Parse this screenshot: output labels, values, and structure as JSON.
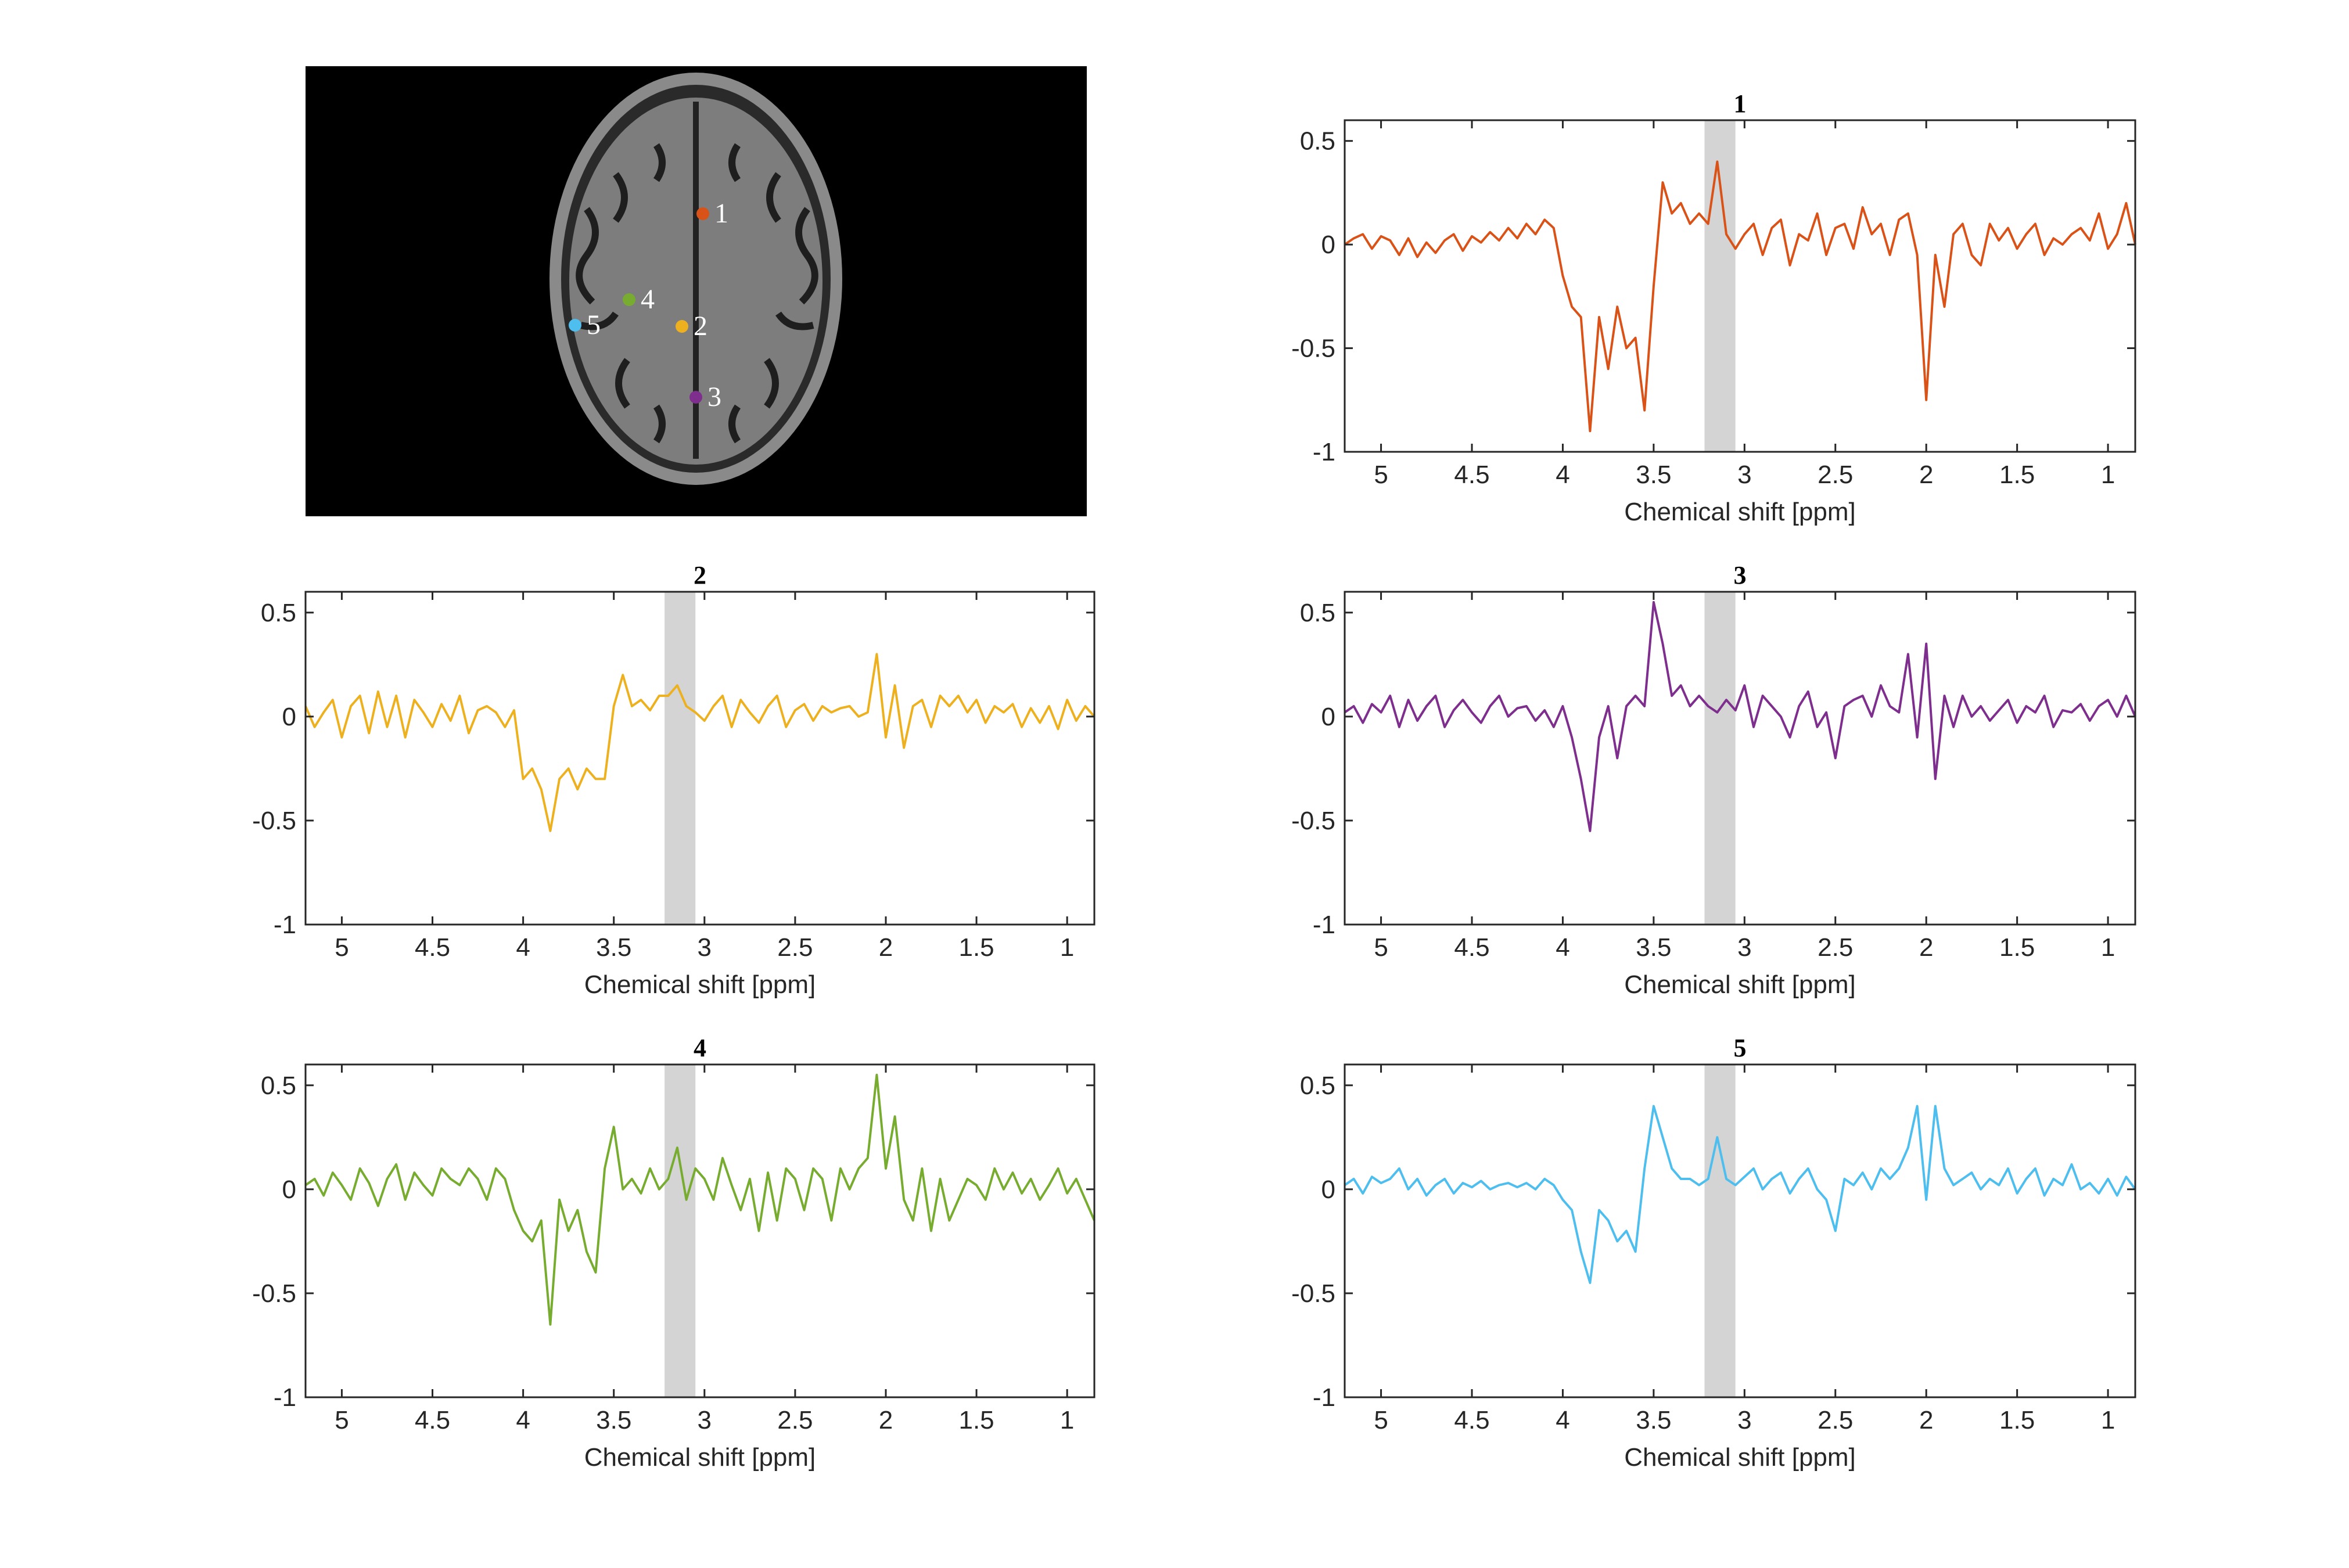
{
  "image": {
    "markers": [
      {
        "label": "1",
        "color": "#d95319"
      },
      {
        "label": "2",
        "color": "#edb120"
      },
      {
        "label": "3",
        "color": "#7e2f8e"
      },
      {
        "label": "4",
        "color": "#77ac30"
      },
      {
        "label": "5",
        "color": "#4dbeee"
      }
    ]
  },
  "chart_data": [
    {
      "type": "line",
      "title": "1",
      "xlabel": "Chemical shift [ppm]",
      "x": [
        5.2,
        5.15,
        5.1,
        5.05,
        5,
        4.95,
        4.9,
        4.85,
        4.8,
        4.75,
        4.7,
        4.65,
        4.6,
        4.55,
        4.5,
        4.45,
        4.4,
        4.35,
        4.3,
        4.25,
        4.2,
        4.15,
        4.1,
        4.05,
        4,
        3.95,
        3.9,
        3.85,
        3.8,
        3.75,
        3.7,
        3.65,
        3.6,
        3.55,
        3.5,
        3.45,
        3.4,
        3.35,
        3.3,
        3.25,
        3.2,
        3.15,
        3.1,
        3.05,
        3,
        2.95,
        2.9,
        2.85,
        2.8,
        2.75,
        2.7,
        2.65,
        2.6,
        2.55,
        2.5,
        2.45,
        2.4,
        2.35,
        2.3,
        2.25,
        2.2,
        2.15,
        2.1,
        2.05,
        2,
        1.95,
        1.9,
        1.85,
        1.8,
        1.75,
        1.7,
        1.65,
        1.6,
        1.55,
        1.5,
        1.45,
        1.4,
        1.35,
        1.3,
        1.25,
        1.2,
        1.15,
        1.1,
        1.05,
        1,
        0.95,
        0.9,
        0.85
      ],
      "series": [
        {
          "color": "#d95319",
          "values": [
            0,
            0.03,
            0.05,
            -0.02,
            0.04,
            0.02,
            -0.05,
            0.03,
            -0.06,
            0.01,
            -0.04,
            0.02,
            0.05,
            -0.03,
            0.04,
            0.01,
            0.06,
            0.02,
            0.08,
            0.03,
            0.1,
            0.05,
            0.12,
            0.08,
            -0.15,
            -0.3,
            -0.35,
            -0.9,
            -0.35,
            -0.6,
            -0.3,
            -0.5,
            -0.45,
            -0.8,
            -0.2,
            0.3,
            0.15,
            0.2,
            0.1,
            0.15,
            0.1,
            0.4,
            0.05,
            -0.02,
            0.05,
            0.1,
            -0.05,
            0.08,
            0.12,
            -0.1,
            0.05,
            0.02,
            0.15,
            -0.05,
            0.08,
            0.1,
            -0.02,
            0.18,
            0.05,
            0.1,
            -0.05,
            0.12,
            0.15,
            -0.05,
            -0.75,
            -0.05,
            -0.3,
            0.05,
            0.1,
            -0.05,
            -0.1,
            0.1,
            0.02,
            0.08,
            -0.02,
            0.05,
            0.1,
            -0.05,
            0.03,
            0,
            0.05,
            0.08,
            0.02,
            0.15,
            -0.02,
            0.05,
            0.2,
            0
          ]
        }
      ],
      "shaded_region": [
        3.22,
        3.05
      ],
      "xlim": [
        5.2,
        0.85
      ],
      "xticks": [
        5,
        4.5,
        4,
        3.5,
        3,
        2.5,
        2,
        1.5,
        1
      ],
      "ylim": [
        -1,
        0.6
      ],
      "yticks": [
        -1,
        -0.5,
        0,
        0.5
      ]
    },
    {
      "type": "line",
      "title": "2",
      "xlabel": "Chemical shift [ppm]",
      "x": [
        5.2,
        5.15,
        5.1,
        5.05,
        5,
        4.95,
        4.9,
        4.85,
        4.8,
        4.75,
        4.7,
        4.65,
        4.6,
        4.55,
        4.5,
        4.45,
        4.4,
        4.35,
        4.3,
        4.25,
        4.2,
        4.15,
        4.1,
        4.05,
        4,
        3.95,
        3.9,
        3.85,
        3.8,
        3.75,
        3.7,
        3.65,
        3.6,
        3.55,
        3.5,
        3.45,
        3.4,
        3.35,
        3.3,
        3.25,
        3.2,
        3.15,
        3.1,
        3.05,
        3,
        2.95,
        2.9,
        2.85,
        2.8,
        2.75,
        2.7,
        2.65,
        2.6,
        2.55,
        2.5,
        2.45,
        2.4,
        2.35,
        2.3,
        2.25,
        2.2,
        2.15,
        2.1,
        2.05,
        2,
        1.95,
        1.9,
        1.85,
        1.8,
        1.75,
        1.7,
        1.65,
        1.6,
        1.55,
        1.5,
        1.45,
        1.4,
        1.35,
        1.3,
        1.25,
        1.2,
        1.15,
        1.1,
        1.05,
        1,
        0.95,
        0.9,
        0.85
      ],
      "series": [
        {
          "color": "#edb120",
          "values": [
            0.05,
            -0.05,
            0.02,
            0.08,
            -0.1,
            0.05,
            0.1,
            -0.08,
            0.12,
            -0.05,
            0.1,
            -0.1,
            0.08,
            0.02,
            -0.05,
            0.06,
            -0.02,
            0.1,
            -0.08,
            0.03,
            0.05,
            0.02,
            -0.05,
            0.03,
            -0.3,
            -0.25,
            -0.35,
            -0.55,
            -0.3,
            -0.25,
            -0.35,
            -0.25,
            -0.3,
            -0.3,
            0.05,
            0.2,
            0.05,
            0.08,
            0.03,
            0.1,
            0.1,
            0.15,
            0.05,
            0.02,
            -0.02,
            0.05,
            0.1,
            -0.05,
            0.08,
            0.02,
            -0.03,
            0.05,
            0.1,
            -0.05,
            0.03,
            0.06,
            -0.02,
            0.05,
            0.02,
            0.04,
            0.05,
            0,
            0.02,
            0.3,
            -0.1,
            0.15,
            -0.15,
            0.05,
            0.08,
            -0.05,
            0.1,
            0.05,
            0.1,
            0.02,
            0.08,
            -0.03,
            0.05,
            0.02,
            0.06,
            -0.05,
            0.04,
            -0.03,
            0.05,
            -0.06,
            0.08,
            -0.02,
            0.05,
            0
          ]
        }
      ],
      "shaded_region": [
        3.22,
        3.05
      ],
      "xlim": [
        5.2,
        0.85
      ],
      "xticks": [
        5,
        4.5,
        4,
        3.5,
        3,
        2.5,
        2,
        1.5,
        1
      ],
      "ylim": [
        -1,
        0.6
      ],
      "yticks": [
        -1,
        -0.5,
        0,
        0.5
      ]
    },
    {
      "type": "line",
      "title": "3",
      "xlabel": "Chemical shift [ppm]",
      "x": [
        5.2,
        5.15,
        5.1,
        5.05,
        5,
        4.95,
        4.9,
        4.85,
        4.8,
        4.75,
        4.7,
        4.65,
        4.6,
        4.55,
        4.5,
        4.45,
        4.4,
        4.35,
        4.3,
        4.25,
        4.2,
        4.15,
        4.1,
        4.05,
        4,
        3.95,
        3.9,
        3.85,
        3.8,
        3.75,
        3.7,
        3.65,
        3.6,
        3.55,
        3.5,
        3.45,
        3.4,
        3.35,
        3.3,
        3.25,
        3.2,
        3.15,
        3.1,
        3.05,
        3,
        2.95,
        2.9,
        2.85,
        2.8,
        2.75,
        2.7,
        2.65,
        2.6,
        2.55,
        2.5,
        2.45,
        2.4,
        2.35,
        2.3,
        2.25,
        2.2,
        2.15,
        2.1,
        2.05,
        2,
        1.95,
        1.9,
        1.85,
        1.8,
        1.75,
        1.7,
        1.65,
        1.6,
        1.55,
        1.5,
        1.45,
        1.4,
        1.35,
        1.3,
        1.25,
        1.2,
        1.15,
        1.1,
        1.05,
        1,
        0.95,
        0.9,
        0.85
      ],
      "series": [
        {
          "color": "#7e2f8e",
          "values": [
            0.02,
            0.05,
            -0.03,
            0.06,
            0.02,
            0.1,
            -0.05,
            0.08,
            -0.02,
            0.05,
            0.1,
            -0.05,
            0.03,
            0.08,
            0.02,
            -0.03,
            0.05,
            0.1,
            0,
            0.04,
            0.05,
            -0.02,
            0.03,
            -0.05,
            0.05,
            -0.1,
            -0.3,
            -0.55,
            -0.1,
            0.05,
            -0.2,
            0.05,
            0.1,
            0.05,
            0.55,
            0.35,
            0.1,
            0.15,
            0.05,
            0.1,
            0.05,
            0.02,
            0.08,
            0.03,
            0.15,
            -0.05,
            0.1,
            0.05,
            0,
            -0.1,
            0.05,
            0.12,
            -0.05,
            0.02,
            -0.2,
            0.05,
            0.08,
            0.1,
            0,
            0.15,
            0.05,
            0.02,
            0.3,
            -0.1,
            0.35,
            -0.3,
            0.1,
            -0.05,
            0.1,
            0,
            0.05,
            -0.02,
            0.03,
            0.08,
            -0.03,
            0.05,
            0.02,
            0.1,
            -0.05,
            0.03,
            0.02,
            0.06,
            -0.02,
            0.05,
            0.08,
            0,
            0.1,
            0
          ]
        }
      ],
      "shaded_region": [
        3.22,
        3.05
      ],
      "xlim": [
        5.2,
        0.85
      ],
      "xticks": [
        5,
        4.5,
        4,
        3.5,
        3,
        2.5,
        2,
        1.5,
        1
      ],
      "ylim": [
        -1,
        0.6
      ],
      "yticks": [
        -1,
        -0.5,
        0,
        0.5
      ]
    },
    {
      "type": "line",
      "title": "4",
      "xlabel": "Chemical shift [ppm]",
      "x": [
        5.2,
        5.15,
        5.1,
        5.05,
        5,
        4.95,
        4.9,
        4.85,
        4.8,
        4.75,
        4.7,
        4.65,
        4.6,
        4.55,
        4.5,
        4.45,
        4.4,
        4.35,
        4.3,
        4.25,
        4.2,
        4.15,
        4.1,
        4.05,
        4,
        3.95,
        3.9,
        3.85,
        3.8,
        3.75,
        3.7,
        3.65,
        3.6,
        3.55,
        3.5,
        3.45,
        3.4,
        3.35,
        3.3,
        3.25,
        3.2,
        3.15,
        3.1,
        3.05,
        3,
        2.95,
        2.9,
        2.85,
        2.8,
        2.75,
        2.7,
        2.65,
        2.6,
        2.55,
        2.5,
        2.45,
        2.4,
        2.35,
        2.3,
        2.25,
        2.2,
        2.15,
        2.1,
        2.05,
        2,
        1.95,
        1.9,
        1.85,
        1.8,
        1.75,
        1.7,
        1.65,
        1.6,
        1.55,
        1.5,
        1.45,
        1.4,
        1.35,
        1.3,
        1.25,
        1.2,
        1.15,
        1.1,
        1.05,
        1,
        0.95,
        0.9,
        0.85
      ],
      "series": [
        {
          "color": "#77ac30",
          "values": [
            0.02,
            0.05,
            -0.03,
            0.08,
            0.02,
            -0.05,
            0.1,
            0.03,
            -0.08,
            0.05,
            0.12,
            -0.05,
            0.08,
            0.02,
            -0.03,
            0.1,
            0.05,
            0.02,
            0.1,
            0.05,
            -0.05,
            0.1,
            0.05,
            -0.1,
            -0.2,
            -0.25,
            -0.15,
            -0.65,
            -0.05,
            -0.2,
            -0.1,
            -0.3,
            -0.4,
            0.1,
            0.3,
            0,
            0.05,
            -0.02,
            0.1,
            0,
            0.05,
            0.2,
            -0.05,
            0.1,
            0.05,
            -0.05,
            0.15,
            0.02,
            -0.1,
            0.05,
            -0.2,
            0.08,
            -0.15,
            0.1,
            0.05,
            -0.1,
            0.1,
            0.05,
            -0.15,
            0.1,
            0,
            0.1,
            0.15,
            0.55,
            0.1,
            0.35,
            -0.05,
            -0.15,
            0.1,
            -0.2,
            0.05,
            -0.15,
            -0.05,
            0.05,
            0.02,
            -0.05,
            0.1,
            0,
            0.08,
            -0.02,
            0.05,
            -0.05,
            0.02,
            0.1,
            -0.02,
            0.05,
            -0.05,
            -0.15
          ]
        }
      ],
      "shaded_region": [
        3.22,
        3.05
      ],
      "xlim": [
        5.2,
        0.85
      ],
      "xticks": [
        5,
        4.5,
        4,
        3.5,
        3,
        2.5,
        2,
        1.5,
        1
      ],
      "ylim": [
        -1,
        0.6
      ],
      "yticks": [
        -1,
        -0.5,
        0,
        0.5
      ]
    },
    {
      "type": "line",
      "title": "5",
      "xlabel": "Chemical shift [ppm]",
      "x": [
        5.2,
        5.15,
        5.1,
        5.05,
        5,
        4.95,
        4.9,
        4.85,
        4.8,
        4.75,
        4.7,
        4.65,
        4.6,
        4.55,
        4.5,
        4.45,
        4.4,
        4.35,
        4.3,
        4.25,
        4.2,
        4.15,
        4.1,
        4.05,
        4,
        3.95,
        3.9,
        3.85,
        3.8,
        3.75,
        3.7,
        3.65,
        3.6,
        3.55,
        3.5,
        3.45,
        3.4,
        3.35,
        3.3,
        3.25,
        3.2,
        3.15,
        3.1,
        3.05,
        3,
        2.95,
        2.9,
        2.85,
        2.8,
        2.75,
        2.7,
        2.65,
        2.6,
        2.55,
        2.5,
        2.45,
        2.4,
        2.35,
        2.3,
        2.25,
        2.2,
        2.15,
        2.1,
        2.05,
        2,
        1.95,
        1.9,
        1.85,
        1.8,
        1.75,
        1.7,
        1.65,
        1.6,
        1.55,
        1.5,
        1.45,
        1.4,
        1.35,
        1.3,
        1.25,
        1.2,
        1.15,
        1.1,
        1.05,
        1,
        0.95,
        0.9,
        0.85
      ],
      "series": [
        {
          "color": "#4dbeee",
          "values": [
            0.02,
            0.05,
            -0.02,
            0.06,
            0.03,
            0.05,
            0.1,
            0,
            0.05,
            -0.03,
            0.02,
            0.05,
            -0.02,
            0.03,
            0.01,
            0.04,
            0,
            0.02,
            0.03,
            0.01,
            0.03,
            0,
            0.05,
            0.02,
            -0.05,
            -0.1,
            -0.3,
            -0.45,
            -0.1,
            -0.15,
            -0.25,
            -0.2,
            -0.3,
            0.1,
            0.4,
            0.25,
            0.1,
            0.05,
            0.05,
            0.02,
            0.05,
            0.25,
            0.05,
            0.02,
            0.06,
            0.1,
            0,
            0.05,
            0.08,
            -0.02,
            0.05,
            0.1,
            0,
            -0.05,
            -0.2,
            0.05,
            0.02,
            0.08,
            0,
            0.1,
            0.05,
            0.1,
            0.2,
            0.4,
            -0.05,
            0.4,
            0.1,
            0.02,
            0.05,
            0.08,
            0,
            0.05,
            0.02,
            0.1,
            -0.02,
            0.05,
            0.1,
            -0.03,
            0.05,
            0.02,
            0.12,
            0,
            0.03,
            -0.02,
            0.05,
            -0.03,
            0.06,
            0
          ]
        }
      ],
      "shaded_region": [
        3.22,
        3.05
      ],
      "xlim": [
        5.2,
        0.85
      ],
      "xticks": [
        5,
        4.5,
        4,
        3.5,
        3,
        2.5,
        2,
        1.5,
        1
      ],
      "ylim": [
        -1,
        0.6
      ],
      "yticks": [
        -1,
        -0.5,
        0,
        0.5
      ]
    }
  ]
}
